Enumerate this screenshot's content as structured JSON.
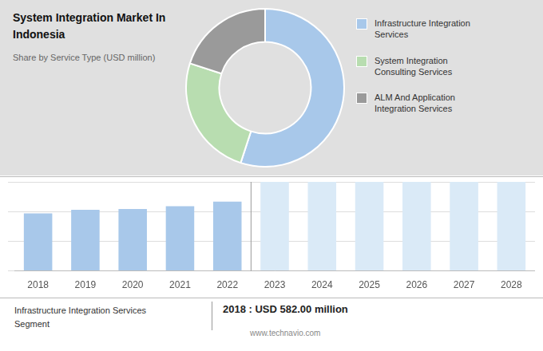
{
  "chart_data": [
    {
      "type": "doughnut",
      "title": "System Integration Market In\nIndonesia",
      "subtitle": "Share by Service Type (USD million)",
      "categories": [
        "Infrastructure Integration\nServices",
        "System Integration\nConsulting Services",
        "ALM And Application\nIntegration Services"
      ],
      "values": [
        55,
        25,
        20
      ],
      "colors": [
        "#a8c8ea",
        "#b8ddb0",
        "#9a9a9a"
      ],
      "legend": "right"
    },
    {
      "type": "bar",
      "categories": [
        "2018",
        "2019",
        "2020",
        "2021",
        "2022",
        "2023",
        "2024",
        "2025",
        "2026",
        "2027",
        "2028"
      ],
      "values": [
        582,
        618,
        625,
        655,
        700,
        900,
        900,
        900,
        900,
        900,
        900
      ],
      "colors": [
        "#a8c8ea",
        "#a8c8ea",
        "#a8c8ea",
        "#a8c8ea",
        "#a8c8ea",
        "#daeaf7",
        "#daeaf7",
        "#daeaf7",
        "#daeaf7",
        "#daeaf7",
        "#daeaf7"
      ],
      "ylim": [
        0,
        900
      ],
      "yticks": [
        0,
        300,
        600,
        900
      ],
      "grid": true,
      "tick_labels": "x",
      "annotations": [
        "Infrastructure Integration Services",
        "Segment",
        "2018 : USD 582.00 million",
        "www.technavio.com"
      ]
    }
  ]
}
